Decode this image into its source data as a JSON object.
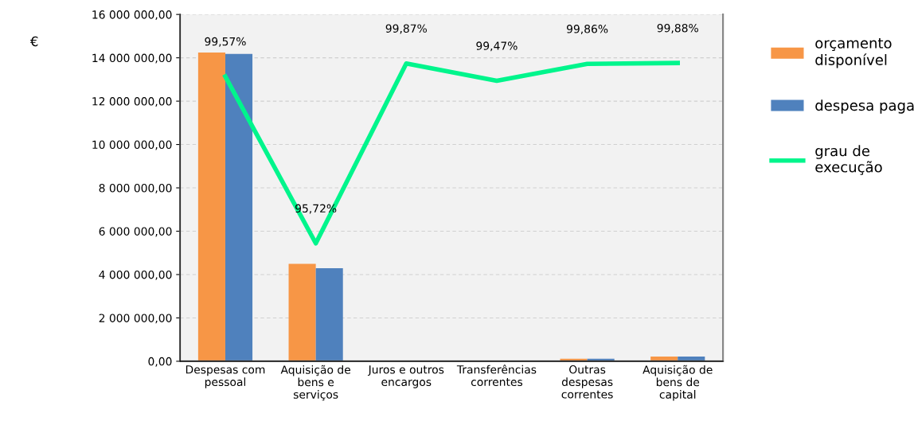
{
  "chart_data": {
    "type": "bar",
    "ylabel": "€",
    "categories": [
      "Despesas com pessoal",
      "Aquisição de bens e serviços",
      "Juros e outros encargos",
      "Transferências correntes",
      "Outras despesas correntes",
      "Aquisição de bens de capital"
    ],
    "series": [
      {
        "name": "orçamento disponível",
        "color": "#f79646",
        "values": [
          14240000,
          4490000,
          0,
          0,
          120000,
          220000
        ]
      },
      {
        "name": "despesa paga",
        "color": "#4f81bd",
        "values": [
          14180000,
          4290000,
          0,
          0,
          120000,
          220000
        ]
      },
      {
        "name": "grau de execução",
        "type": "line",
        "axis": "y2",
        "color": "#00f58c",
        "values": [
          99.57,
          95.72,
          99.87,
          99.47,
          99.86,
          99.88
        ],
        "value_labels": [
          "99,57%",
          "95,72%",
          "99,87%",
          "99,47%",
          "99,86%",
          "99,88%"
        ]
      }
    ],
    "ylim": [
      0,
      16000000
    ],
    "yticks": [
      {
        "value": 0,
        "label": "0,00"
      },
      {
        "value": 2000000,
        "label": "2 000 000,00"
      },
      {
        "value": 4000000,
        "label": "4 000 000,00"
      },
      {
        "value": 6000000,
        "label": "6 000 000,00"
      },
      {
        "value": 8000000,
        "label": "8 000 000,00"
      },
      {
        "value": 10000000,
        "label": "10 000 000,00"
      },
      {
        "value": 12000000,
        "label": "12 000 000,00"
      },
      {
        "value": 14000000,
        "label": "14 000 000,00"
      },
      {
        "value": 16000000,
        "label": "16 000 000,00"
      }
    ],
    "y2lim": [
      93,
      101
    ],
    "grid": "y",
    "legend": "right"
  }
}
